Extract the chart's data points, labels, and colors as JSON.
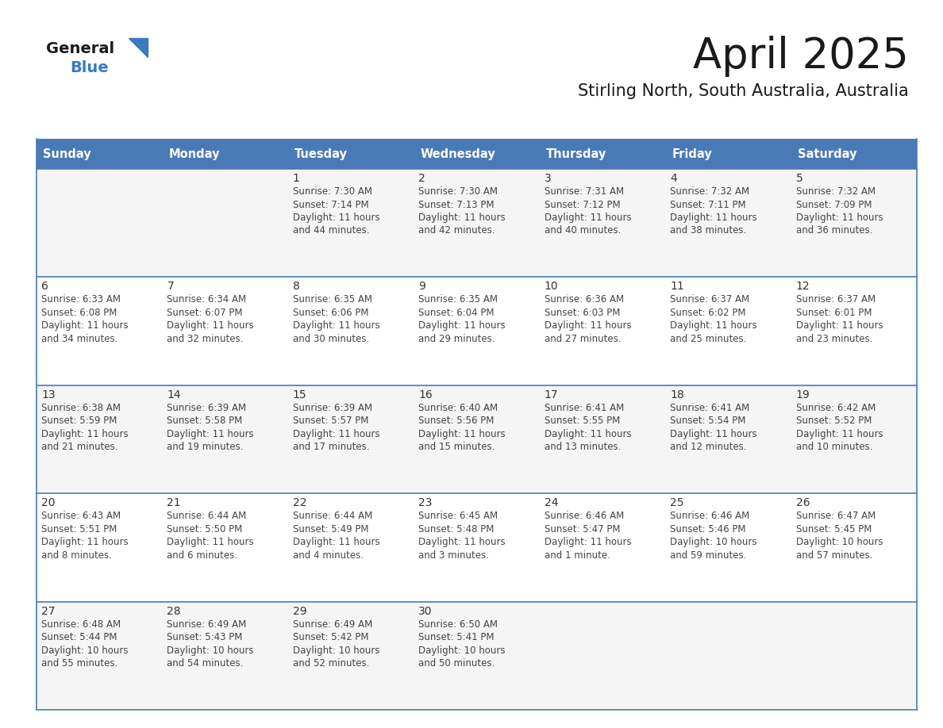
{
  "title": "April 2025",
  "subtitle": "Stirling North, South Australia, Australia",
  "days_of_week": [
    "Sunday",
    "Monday",
    "Tuesday",
    "Wednesday",
    "Thursday",
    "Friday",
    "Saturday"
  ],
  "header_bg_color": "#4a7ab5",
  "header_text_color": "#FFFFFF",
  "cell_bg_row0": "#F5F5F5",
  "cell_bg_row1": "#FFFFFF",
  "cell_bg_row2": "#F5F5F5",
  "cell_bg_row3": "#FFFFFF",
  "cell_bg_row4": "#F5F5F5",
  "cell_text_color": "#444444",
  "day_num_color": "#333333",
  "grid_line_color": "#4a7ab5",
  "title_color": "#1a1a1a",
  "subtitle_color": "#1a1a1a",
  "logo_general_color": "#1a1a1a",
  "logo_blue_color": "#3a7abf",
  "calendar_data": [
    {
      "day": 1,
      "col": 2,
      "row": 0,
      "sunrise": "7:30 AM",
      "sunset": "7:14 PM",
      "daylight_h": "11 hours",
      "daylight_m": "44 minutes."
    },
    {
      "day": 2,
      "col": 3,
      "row": 0,
      "sunrise": "7:30 AM",
      "sunset": "7:13 PM",
      "daylight_h": "11 hours",
      "daylight_m": "42 minutes."
    },
    {
      "day": 3,
      "col": 4,
      "row": 0,
      "sunrise": "7:31 AM",
      "sunset": "7:12 PM",
      "daylight_h": "11 hours",
      "daylight_m": "40 minutes."
    },
    {
      "day": 4,
      "col": 5,
      "row": 0,
      "sunrise": "7:32 AM",
      "sunset": "7:11 PM",
      "daylight_h": "11 hours",
      "daylight_m": "38 minutes."
    },
    {
      "day": 5,
      "col": 6,
      "row": 0,
      "sunrise": "7:32 AM",
      "sunset": "7:09 PM",
      "daylight_h": "11 hours",
      "daylight_m": "36 minutes."
    },
    {
      "day": 6,
      "col": 0,
      "row": 1,
      "sunrise": "6:33 AM",
      "sunset": "6:08 PM",
      "daylight_h": "11 hours",
      "daylight_m": "34 minutes."
    },
    {
      "day": 7,
      "col": 1,
      "row": 1,
      "sunrise": "6:34 AM",
      "sunset": "6:07 PM",
      "daylight_h": "11 hours",
      "daylight_m": "32 minutes."
    },
    {
      "day": 8,
      "col": 2,
      "row": 1,
      "sunrise": "6:35 AM",
      "sunset": "6:06 PM",
      "daylight_h": "11 hours",
      "daylight_m": "30 minutes."
    },
    {
      "day": 9,
      "col": 3,
      "row": 1,
      "sunrise": "6:35 AM",
      "sunset": "6:04 PM",
      "daylight_h": "11 hours",
      "daylight_m": "29 minutes."
    },
    {
      "day": 10,
      "col": 4,
      "row": 1,
      "sunrise": "6:36 AM",
      "sunset": "6:03 PM",
      "daylight_h": "11 hours",
      "daylight_m": "27 minutes."
    },
    {
      "day": 11,
      "col": 5,
      "row": 1,
      "sunrise": "6:37 AM",
      "sunset": "6:02 PM",
      "daylight_h": "11 hours",
      "daylight_m": "25 minutes."
    },
    {
      "day": 12,
      "col": 6,
      "row": 1,
      "sunrise": "6:37 AM",
      "sunset": "6:01 PM",
      "daylight_h": "11 hours",
      "daylight_m": "23 minutes."
    },
    {
      "day": 13,
      "col": 0,
      "row": 2,
      "sunrise": "6:38 AM",
      "sunset": "5:59 PM",
      "daylight_h": "11 hours",
      "daylight_m": "21 minutes."
    },
    {
      "day": 14,
      "col": 1,
      "row": 2,
      "sunrise": "6:39 AM",
      "sunset": "5:58 PM",
      "daylight_h": "11 hours",
      "daylight_m": "19 minutes."
    },
    {
      "day": 15,
      "col": 2,
      "row": 2,
      "sunrise": "6:39 AM",
      "sunset": "5:57 PM",
      "daylight_h": "11 hours",
      "daylight_m": "17 minutes."
    },
    {
      "day": 16,
      "col": 3,
      "row": 2,
      "sunrise": "6:40 AM",
      "sunset": "5:56 PM",
      "daylight_h": "11 hours",
      "daylight_m": "15 minutes."
    },
    {
      "day": 17,
      "col": 4,
      "row": 2,
      "sunrise": "6:41 AM",
      "sunset": "5:55 PM",
      "daylight_h": "11 hours",
      "daylight_m": "13 minutes."
    },
    {
      "day": 18,
      "col": 5,
      "row": 2,
      "sunrise": "6:41 AM",
      "sunset": "5:54 PM",
      "daylight_h": "11 hours",
      "daylight_m": "12 minutes."
    },
    {
      "day": 19,
      "col": 6,
      "row": 2,
      "sunrise": "6:42 AM",
      "sunset": "5:52 PM",
      "daylight_h": "11 hours",
      "daylight_m": "10 minutes."
    },
    {
      "day": 20,
      "col": 0,
      "row": 3,
      "sunrise": "6:43 AM",
      "sunset": "5:51 PM",
      "daylight_h": "11 hours",
      "daylight_m": "8 minutes."
    },
    {
      "day": 21,
      "col": 1,
      "row": 3,
      "sunrise": "6:44 AM",
      "sunset": "5:50 PM",
      "daylight_h": "11 hours",
      "daylight_m": "6 minutes."
    },
    {
      "day": 22,
      "col": 2,
      "row": 3,
      "sunrise": "6:44 AM",
      "sunset": "5:49 PM",
      "daylight_h": "11 hours",
      "daylight_m": "4 minutes."
    },
    {
      "day": 23,
      "col": 3,
      "row": 3,
      "sunrise": "6:45 AM",
      "sunset": "5:48 PM",
      "daylight_h": "11 hours",
      "daylight_m": "3 minutes."
    },
    {
      "day": 24,
      "col": 4,
      "row": 3,
      "sunrise": "6:46 AM",
      "sunset": "5:47 PM",
      "daylight_h": "11 hours",
      "daylight_m": "1 minute."
    },
    {
      "day": 25,
      "col": 5,
      "row": 3,
      "sunrise": "6:46 AM",
      "sunset": "5:46 PM",
      "daylight_h": "10 hours",
      "daylight_m": "59 minutes."
    },
    {
      "day": 26,
      "col": 6,
      "row": 3,
      "sunrise": "6:47 AM",
      "sunset": "5:45 PM",
      "daylight_h": "10 hours",
      "daylight_m": "57 minutes."
    },
    {
      "day": 27,
      "col": 0,
      "row": 4,
      "sunrise": "6:48 AM",
      "sunset": "5:44 PM",
      "daylight_h": "10 hours",
      "daylight_m": "55 minutes."
    },
    {
      "day": 28,
      "col": 1,
      "row": 4,
      "sunrise": "6:49 AM",
      "sunset": "5:43 PM",
      "daylight_h": "10 hours",
      "daylight_m": "54 minutes."
    },
    {
      "day": 29,
      "col": 2,
      "row": 4,
      "sunrise": "6:49 AM",
      "sunset": "5:42 PM",
      "daylight_h": "10 hours",
      "daylight_m": "52 minutes."
    },
    {
      "day": 30,
      "col": 3,
      "row": 4,
      "sunrise": "6:50 AM",
      "sunset": "5:41 PM",
      "daylight_h": "10 hours",
      "daylight_m": "50 minutes."
    }
  ]
}
